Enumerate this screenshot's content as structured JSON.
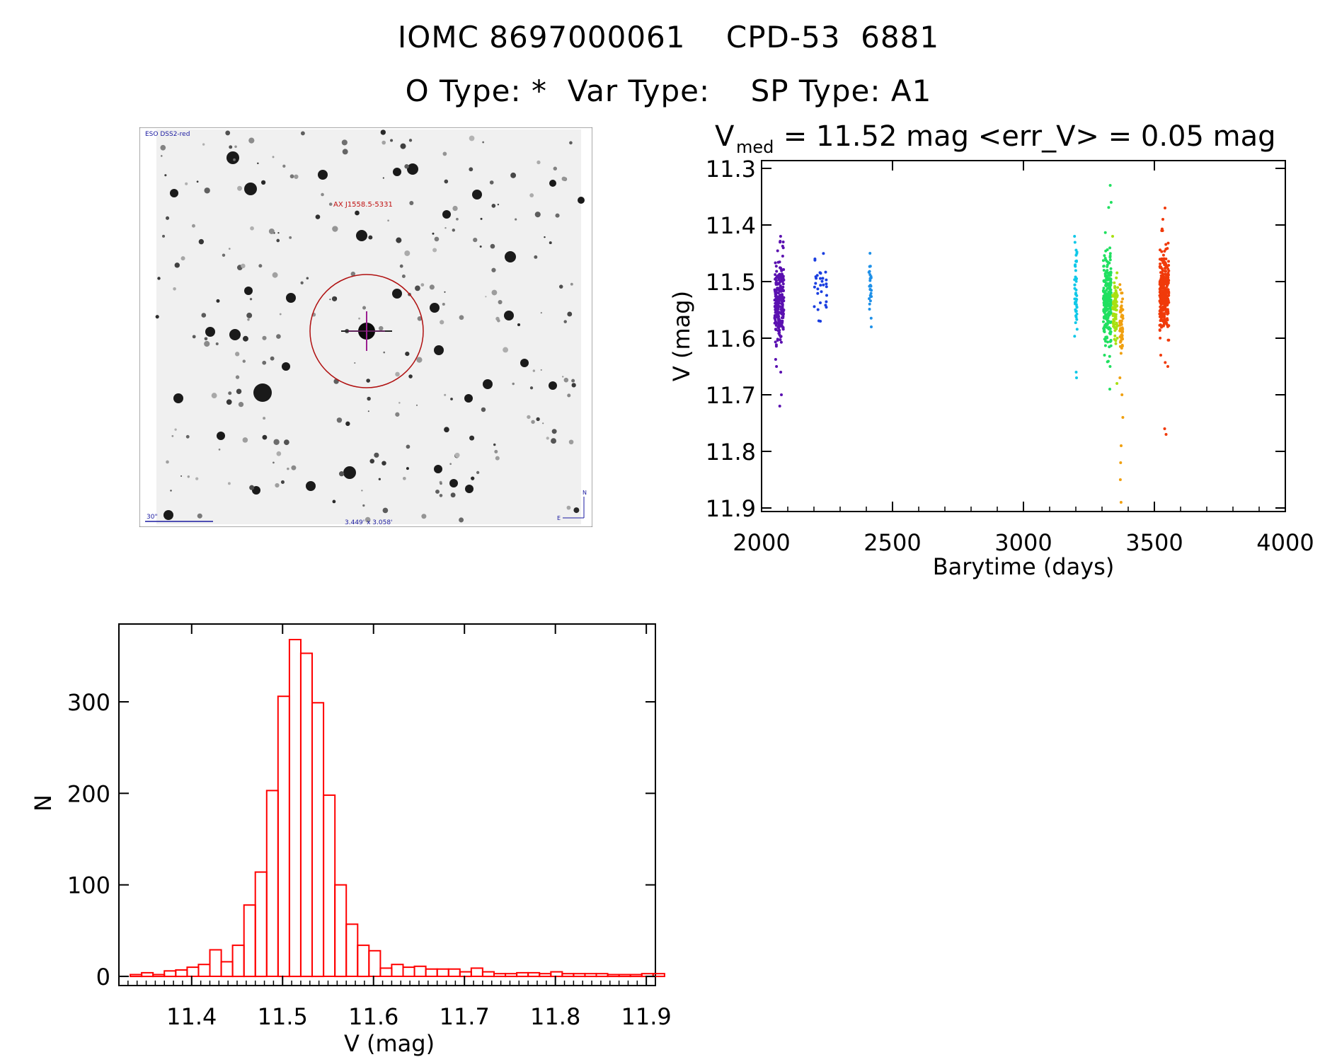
{
  "header": {
    "title": "IOMC 8697000061    CPD-53  6881",
    "subtitle": "O Type: *  Var Type:    SP Type: A1"
  },
  "finder": {
    "survey_label": "ESO DSS2-red",
    "source_label": "AX J1558.5-5331",
    "scale_label": "30\"",
    "fov_label": "3.449' x 3.058'",
    "north_label": "N",
    "east_label": "E"
  },
  "chart_data": [
    {
      "type": "scatter",
      "title_main": "V",
      "title_sub": "med",
      "title_rest": " = 11.52 mag <err_V> = 0.05 mag",
      "xlabel": "Barytime (days)",
      "ylabel": "V (mag)",
      "xlim": [
        2000,
        4000
      ],
      "ylim": [
        11.9,
        11.3
      ],
      "y_inverted": true,
      "xticks": [
        2000,
        2500,
        3000,
        3500,
        4000
      ],
      "yticks": [
        11.3,
        11.4,
        11.5,
        11.6,
        11.7,
        11.8,
        11.9
      ],
      "groups": [
        {
          "x_min": 2050,
          "x_max": 2085,
          "color": "#5a10b0",
          "center": 11.53,
          "spread": 0.035,
          "n": 240,
          "outliers": [
            11.42,
            11.43,
            11.65,
            11.66,
            11.7,
            11.72
          ]
        },
        {
          "x_min": 2200,
          "x_max": 2250,
          "color": "#1a3ee0",
          "center": 11.51,
          "spread": 0.025,
          "n": 30,
          "outliers": [
            11.46,
            11.57
          ]
        },
        {
          "x_min": 2410,
          "x_max": 2420,
          "color": "#1e90e8",
          "center": 11.51,
          "spread": 0.03,
          "n": 25,
          "outliers": [
            11.45,
            11.58
          ]
        },
        {
          "x_min": 3195,
          "x_max": 3205,
          "color": "#10c8e8",
          "center": 11.52,
          "spread": 0.04,
          "n": 45,
          "outliers": [
            11.42,
            11.66,
            11.67
          ]
        },
        {
          "x_min": 3305,
          "x_max": 3335,
          "color": "#20e060",
          "center": 11.53,
          "spread": 0.04,
          "n": 260,
          "outliers": [
            11.33,
            11.36,
            11.63,
            11.65,
            11.69
          ]
        },
        {
          "x_min": 3340,
          "x_max": 3360,
          "color": "#a8e010",
          "center": 11.55,
          "spread": 0.025,
          "n": 80,
          "outliers": [
            11.42,
            11.6,
            11.68
          ]
        },
        {
          "x_min": 3368,
          "x_max": 3380,
          "color": "#f0a010",
          "center": 11.56,
          "spread": 0.03,
          "n": 60,
          "outliers": [
            11.67,
            11.7,
            11.74,
            11.79,
            11.82,
            11.85,
            11.89
          ]
        },
        {
          "x_min": 3520,
          "x_max": 3555,
          "color": "#f03a0a",
          "center": 11.52,
          "spread": 0.035,
          "n": 320,
          "outliers": [
            11.37,
            11.39,
            11.41,
            11.63,
            11.65,
            11.76,
            11.77
          ]
        }
      ]
    },
    {
      "type": "bar",
      "subtype": "histogram",
      "xlabel": "V (mag)",
      "ylabel": "N",
      "xlim": [
        11.32,
        11.91
      ],
      "ylim": [
        -10,
        385
      ],
      "xticks": [
        11.4,
        11.5,
        11.6,
        11.7,
        11.8,
        11.9
      ],
      "yticks": [
        0,
        100,
        200,
        300
      ],
      "color": "#ff0000",
      "bin_width": 0.0125,
      "bin_start": 11.3325,
      "counts": [
        2,
        4,
        2,
        6,
        7,
        10,
        13,
        29,
        16,
        34,
        78,
        114,
        203,
        306,
        368,
        353,
        299,
        198,
        100,
        57,
        34,
        28,
        9,
        13,
        10,
        11,
        8,
        8,
        8,
        5,
        9,
        5,
        3,
        3,
        4,
        4,
        3,
        5,
        3,
        3,
        3,
        3,
        2,
        2,
        2,
        3,
        3
      ]
    }
  ]
}
